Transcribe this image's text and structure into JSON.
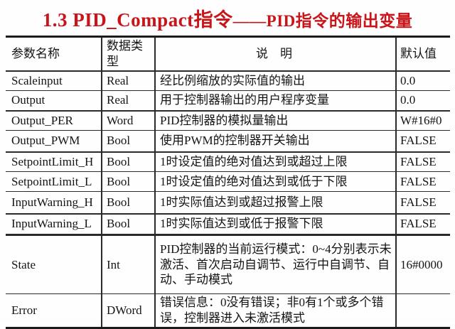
{
  "title": {
    "part1": "1.3 PID_Compact指令",
    "part2": "——PID指令的输出变量"
  },
  "colors": {
    "title_red": "#c9151a",
    "text": "#141414",
    "rule": "#2a2a2a",
    "background": "#ffffff"
  },
  "table": {
    "headers": {
      "param": "参数名称",
      "type": "数据类型",
      "description": "说　明",
      "default": "默认值"
    },
    "rows": [
      {
        "name": "Scaleinput",
        "type": "Real",
        "description": "经比例缩放的实际值的输出",
        "default": "0.0"
      },
      {
        "name": "Output",
        "type": "Real",
        "description": "用于控制器输出的用户程序变量",
        "default": "0.0"
      },
      {
        "name": "Output_PER",
        "type": "Word",
        "description": "PID控制器的模拟量输出",
        "default": "W#16#0"
      },
      {
        "name": "Output_PWM",
        "type": "Bool",
        "description": "使用PWM的控制器开关输出",
        "default": "FALSE"
      },
      {
        "name": "SetpointLimit_H",
        "type": "Bool",
        "description": "1时设定值的绝对值达到或超过上限",
        "default": "FALSE"
      },
      {
        "name": "SetpointLimit_L",
        "type": "Bool",
        "description": "1时设定值的绝对值达到或低于下限",
        "default": "FALSE"
      },
      {
        "name": "InputWarning_H",
        "type": "Bool",
        "description": "1时实际值达到或超过报警上限",
        "default": "FALSE"
      },
      {
        "name": "InputWarning_L",
        "type": "Bool",
        "description": "1时实际值达到或低于报警下限",
        "default": "FALSE"
      },
      {
        "name": "State",
        "type": "Int",
        "description": "PID控制器的当前运行模式：0~4分别表示未激活、首次启动自调节、运行中自调节、自动、手动模式",
        "default": "16#0000"
      },
      {
        "name": "Error",
        "type": "DWord",
        "description": "错误信息：0没有错误；非0有1个或多个错误，控制器进入未激活模式",
        "default": ""
      }
    ]
  }
}
